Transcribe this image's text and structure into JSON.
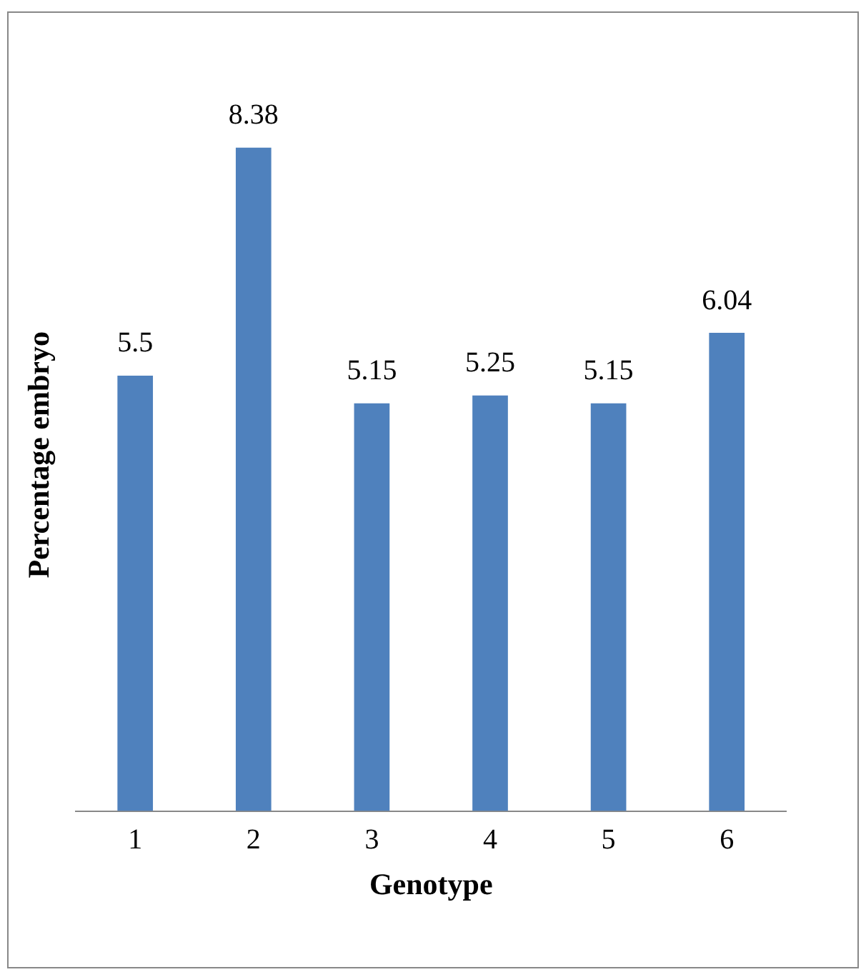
{
  "chart_data": {
    "type": "bar",
    "xlabel": "Genotype",
    "ylabel": "Percentage embryo",
    "categories": [
      "1",
      "2",
      "3",
      "4",
      "5",
      "6"
    ],
    "values": [
      5.5,
      8.38,
      5.15,
      5.25,
      5.15,
      6.04
    ],
    "color": "#4f81bd",
    "data_labels": true,
    "grid": false,
    "legend": false
  }
}
